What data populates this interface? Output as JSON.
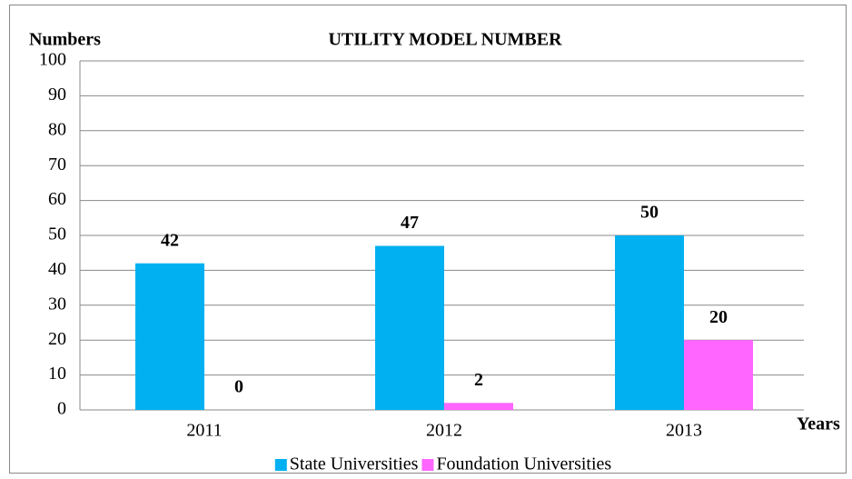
{
  "chart_data": {
    "type": "bar",
    "title": "UTILITY MODEL NUMBER",
    "y_label": "Numbers",
    "x_label": "Years",
    "categories": [
      "2011",
      "2012",
      "2013"
    ],
    "series": [
      {
        "name": "State Universities",
        "color": "#00b0f0",
        "values": [
          42,
          47,
          50
        ]
      },
      {
        "name": "Foundation Universities",
        "color": "#ff66ff",
        "values": [
          0,
          2,
          20
        ]
      }
    ],
    "ylim": [
      0,
      100
    ],
    "yticks": [
      0,
      10,
      20,
      30,
      40,
      50,
      60,
      70,
      80,
      90,
      100
    ],
    "grid": true,
    "legend": "bottom"
  }
}
